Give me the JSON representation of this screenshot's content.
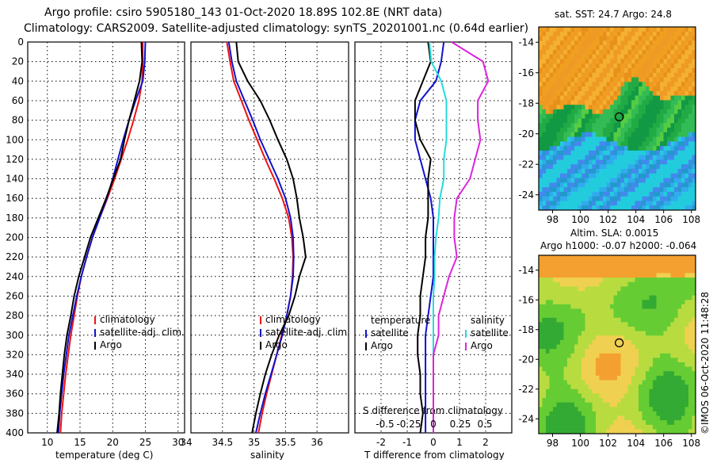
{
  "titles": {
    "line1": "Argo profile: csiro 5905180_143 01-Oct-2020 18.89S 102.8E (NRT data)",
    "line2": "Climatology: CARS2009. Satellite-adjusted climatology: synTS_20201001.nc (0.64d earlier)"
  },
  "colors": {
    "climatology": "#ee1111",
    "satellite": "#1111cc",
    "argo": "#000000",
    "salinity_sat": "#22dddd",
    "salinity_argo": "#dd22dd"
  },
  "depth_ticks": [
    "0",
    "20",
    "40",
    "60",
    "80",
    "100",
    "120",
    "140",
    "160",
    "180",
    "200",
    "220",
    "240",
    "260",
    "280",
    "300",
    "320",
    "340",
    "360",
    "380",
    "400"
  ],
  "chart_data": [
    {
      "type": "line",
      "name": "temperature",
      "xlabel": "temperature (deg C)",
      "xlim": [
        7,
        31
      ],
      "ylim": [
        0,
        400
      ],
      "xticks": [
        10,
        15,
        20,
        25,
        30
      ],
      "legend": [
        "climatology",
        "satellite-adj. clim.",
        "Argo"
      ],
      "series": [
        {
          "name": "climatology",
          "color": "#ee1111",
          "x": [
            24.6,
            24.6,
            24.5,
            24.0,
            23.2,
            22.3,
            21.3,
            20.3,
            19.2,
            18.0,
            16.9,
            16.0,
            15.2,
            14.6,
            14.1,
            13.6,
            13.2,
            12.8,
            12.5,
            12.2,
            12.0
          ],
          "y": [
            0,
            20,
            40,
            60,
            80,
            100,
            120,
            140,
            160,
            180,
            200,
            220,
            240,
            260,
            280,
            300,
            320,
            340,
            360,
            380,
            400
          ]
        },
        {
          "name": "satellite-adj. clim.",
          "color": "#1111cc",
          "x": [
            25.0,
            24.9,
            24.6,
            23.5,
            22.5,
            21.6,
            20.8,
            20.0,
            19.1,
            18.0,
            16.9,
            16.0,
            15.2,
            14.5,
            13.9,
            13.3,
            12.9,
            12.5,
            12.2,
            11.9,
            11.7
          ],
          "y": [
            0,
            20,
            40,
            60,
            80,
            100,
            120,
            140,
            160,
            180,
            200,
            220,
            240,
            260,
            280,
            300,
            320,
            340,
            360,
            380,
            400
          ]
        },
        {
          "name": "Argo",
          "color": "#000000",
          "x": [
            24.4,
            24.5,
            24.1,
            23.3,
            22.5,
            21.8,
            21.2,
            20.1,
            19.0,
            17.8,
            16.6,
            15.7,
            14.8,
            14.1,
            13.6,
            13.0,
            12.6,
            12.3,
            12.0,
            11.8,
            11.5
          ],
          "y": [
            0,
            20,
            40,
            60,
            80,
            100,
            120,
            140,
            160,
            180,
            200,
            220,
            240,
            260,
            280,
            300,
            320,
            340,
            360,
            380,
            400
          ]
        }
      ]
    },
    {
      "type": "line",
      "name": "salinity",
      "xlabel": "salinity",
      "xlim": [
        34,
        36.5
      ],
      "ylim": [
        0,
        400
      ],
      "xticks": [
        34,
        34.5,
        35,
        35.5,
        36
      ],
      "xtick_labels": [
        "34",
        "34.5",
        "35",
        "35.5",
        "36"
      ],
      "legend": [
        "climatology",
        "satellite-adj. clim.",
        "Argo"
      ],
      "series": [
        {
          "name": "climatology",
          "color": "#ee1111",
          "x": [
            34.57,
            34.62,
            34.68,
            34.8,
            34.92,
            35.05,
            35.18,
            35.32,
            35.45,
            35.55,
            35.6,
            35.62,
            35.61,
            35.58,
            35.52,
            35.44,
            35.36,
            35.28,
            35.2,
            35.13,
            35.07
          ],
          "y": [
            0,
            20,
            40,
            60,
            80,
            100,
            120,
            140,
            160,
            180,
            200,
            220,
            240,
            260,
            280,
            300,
            320,
            340,
            360,
            380,
            400
          ]
        },
        {
          "name": "satellite-adj. clim.",
          "color": "#1111cc",
          "x": [
            34.6,
            34.65,
            34.72,
            34.85,
            34.98,
            35.1,
            35.24,
            35.38,
            35.5,
            35.58,
            35.62,
            35.63,
            35.62,
            35.58,
            35.52,
            35.45,
            35.36,
            35.27,
            35.18,
            35.1,
            35.03
          ],
          "y": [
            0,
            20,
            40,
            60,
            80,
            100,
            120,
            140,
            160,
            180,
            200,
            220,
            240,
            260,
            280,
            300,
            320,
            340,
            360,
            380,
            400
          ]
        },
        {
          "name": "Argo",
          "color": "#000000",
          "x": [
            34.72,
            34.75,
            34.9,
            35.1,
            35.25,
            35.38,
            35.52,
            35.62,
            35.68,
            35.72,
            35.78,
            35.82,
            35.72,
            35.65,
            35.55,
            35.4,
            35.28,
            35.18,
            35.1,
            35.03,
            34.97
          ],
          "y": [
            0,
            20,
            40,
            60,
            80,
            100,
            120,
            140,
            160,
            180,
            200,
            220,
            240,
            260,
            280,
            300,
            320,
            340,
            360,
            380,
            400
          ]
        }
      ]
    },
    {
      "type": "line",
      "name": "difference",
      "xlabel": "T difference from climatology",
      "xlabel_top": "S difference from climatology",
      "xlim": [
        -3,
        3
      ],
      "ylim": [
        0,
        400
      ],
      "xticks": [
        -2,
        -1,
        0,
        1,
        2
      ],
      "xticks_top": [
        "-0.5",
        "-0.25",
        "0",
        "0.25",
        "0.5"
      ],
      "legend_temperature_title": "temperature",
      "legend_salinity_title": "salinity",
      "legend_satellite": "satellite",
      "legend_argo": "Argo",
      "series": [
        {
          "name": "temperature satellite",
          "color": "#1111cc",
          "x": [
            0.4,
            0.3,
            0.1,
            -0.5,
            -0.7,
            -0.7,
            -0.5,
            -0.3,
            -0.1,
            0.0,
            0.0,
            0.0,
            0.0,
            -0.1,
            -0.2,
            -0.3,
            -0.3,
            -0.3,
            -0.3,
            -0.3,
            -0.3
          ],
          "y": [
            0,
            20,
            40,
            60,
            80,
            100,
            120,
            140,
            160,
            180,
            200,
            220,
            240,
            260,
            280,
            300,
            320,
            340,
            360,
            380,
            400
          ]
        },
        {
          "name": "temperature Argo",
          "color": "#000000",
          "x": [
            -0.2,
            -0.1,
            -0.4,
            -0.7,
            -0.7,
            -0.5,
            -0.1,
            -0.2,
            -0.2,
            -0.2,
            -0.3,
            -0.3,
            -0.4,
            -0.5,
            -0.5,
            -0.6,
            -0.6,
            -0.5,
            -0.5,
            -0.4,
            -0.5
          ],
          "y": [
            0,
            20,
            40,
            60,
            80,
            100,
            120,
            140,
            160,
            180,
            200,
            220,
            240,
            260,
            280,
            300,
            320,
            340,
            360,
            380,
            400
          ]
        },
        {
          "name": "salinity satellite",
          "color": "#22dddd",
          "x": [
            -0.15,
            -0.08,
            0.3,
            0.5,
            0.5,
            0.5,
            0.4,
            0.4,
            0.25,
            0.2,
            0.1,
            0.05,
            0.05,
            0.0,
            0.0,
            0.0,
            0.0,
            0.0,
            0.0,
            0.0,
            0.0
          ],
          "y": [
            0,
            20,
            40,
            60,
            80,
            100,
            120,
            140,
            160,
            180,
            200,
            220,
            240,
            260,
            280,
            300,
            320,
            340,
            360,
            380,
            400
          ]
        },
        {
          "name": "salinity Argo",
          "color": "#dd22dd",
          "x": [
            0.7,
            1.9,
            2.1,
            1.7,
            1.7,
            1.8,
            1.6,
            1.4,
            0.9,
            0.8,
            0.8,
            0.9,
            0.6,
            0.4,
            0.2,
            0.2,
            0.0,
            0.0,
            0.0,
            0.0,
            0.0
          ],
          "y": [
            0,
            20,
            40,
            60,
            80,
            100,
            120,
            140,
            160,
            180,
            200,
            220,
            240,
            260,
            280,
            300,
            320,
            340,
            360,
            380,
            400
          ]
        }
      ]
    },
    {
      "type": "heatmap",
      "name": "sst_map",
      "title": "sat. SST: 24.7 Argo: 24.8",
      "xlim": [
        97,
        108.3
      ],
      "ylim": [
        -25,
        -13
      ],
      "xticks": [
        "98",
        "100",
        "102",
        "104",
        "106",
        "108"
      ],
      "yticks": [
        "-14",
        "-16",
        "-18",
        "-20",
        "-22",
        "-24"
      ],
      "marker": {
        "lon": 102.8,
        "lat": -18.89
      }
    },
    {
      "type": "heatmap",
      "name": "sla_map",
      "title1": "Altim. SLA: 0.0015",
      "title2": "Argo h1000: -0.07 h2000: -0.064",
      "xlim": [
        97,
        108.3
      ],
      "ylim": [
        -25,
        -13
      ],
      "xticks": [
        "98",
        "100",
        "102",
        "104",
        "106",
        "108"
      ],
      "yticks": [
        "-14",
        "-16",
        "-18",
        "-20",
        "-22",
        "-24"
      ],
      "marker": {
        "lon": 102.8,
        "lat": -18.89
      }
    }
  ],
  "watermark": "©IMOS 06-Oct-2020 11:48:28"
}
